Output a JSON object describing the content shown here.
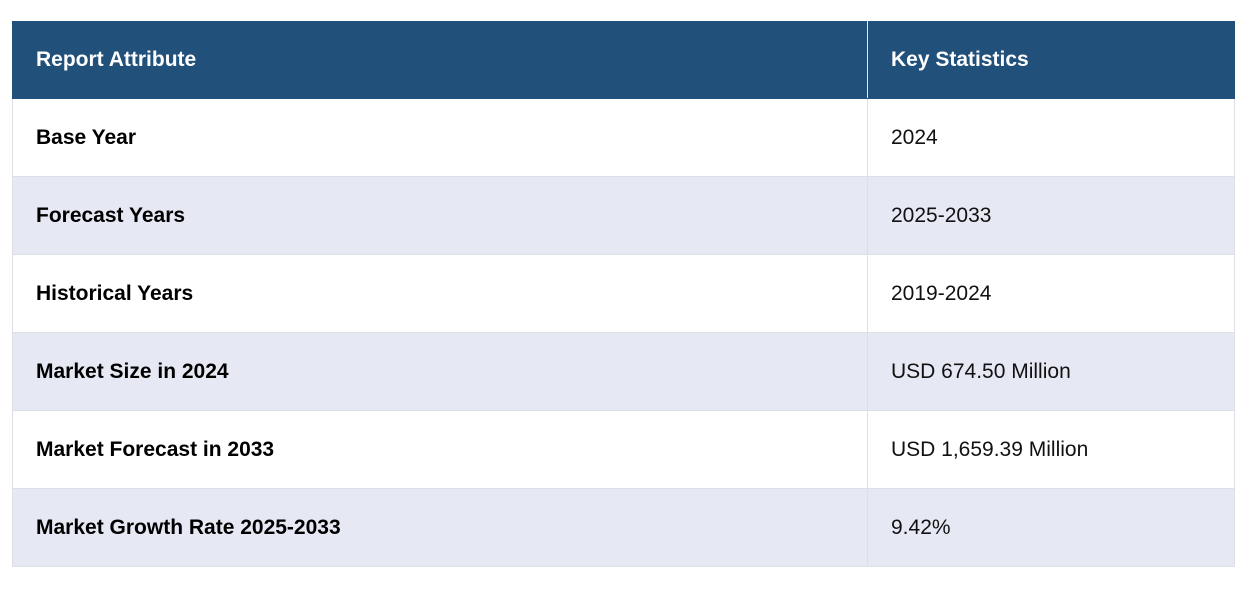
{
  "table": {
    "headers": [
      "Report Attribute",
      "Key Statistics"
    ],
    "rows": [
      {
        "attribute": "Base Year",
        "value": "2024"
      },
      {
        "attribute": "Forecast Years",
        "value": "2025-2033"
      },
      {
        "attribute": "Historical Years",
        "value": "2019-2024"
      },
      {
        "attribute": "Market Size in 2024",
        "value": "USD 674.50 Million"
      },
      {
        "attribute": "Market Forecast in 2033",
        "value": "USD 1,659.39 Million"
      },
      {
        "attribute": "Market Growth Rate 2025-2033",
        "value": "9.42%"
      }
    ]
  },
  "colors": {
    "header_bg": "#21507a",
    "header_text": "#ffffff",
    "row_alt_bg": "#e6e9f4",
    "row_bg": "#ffffff"
  }
}
